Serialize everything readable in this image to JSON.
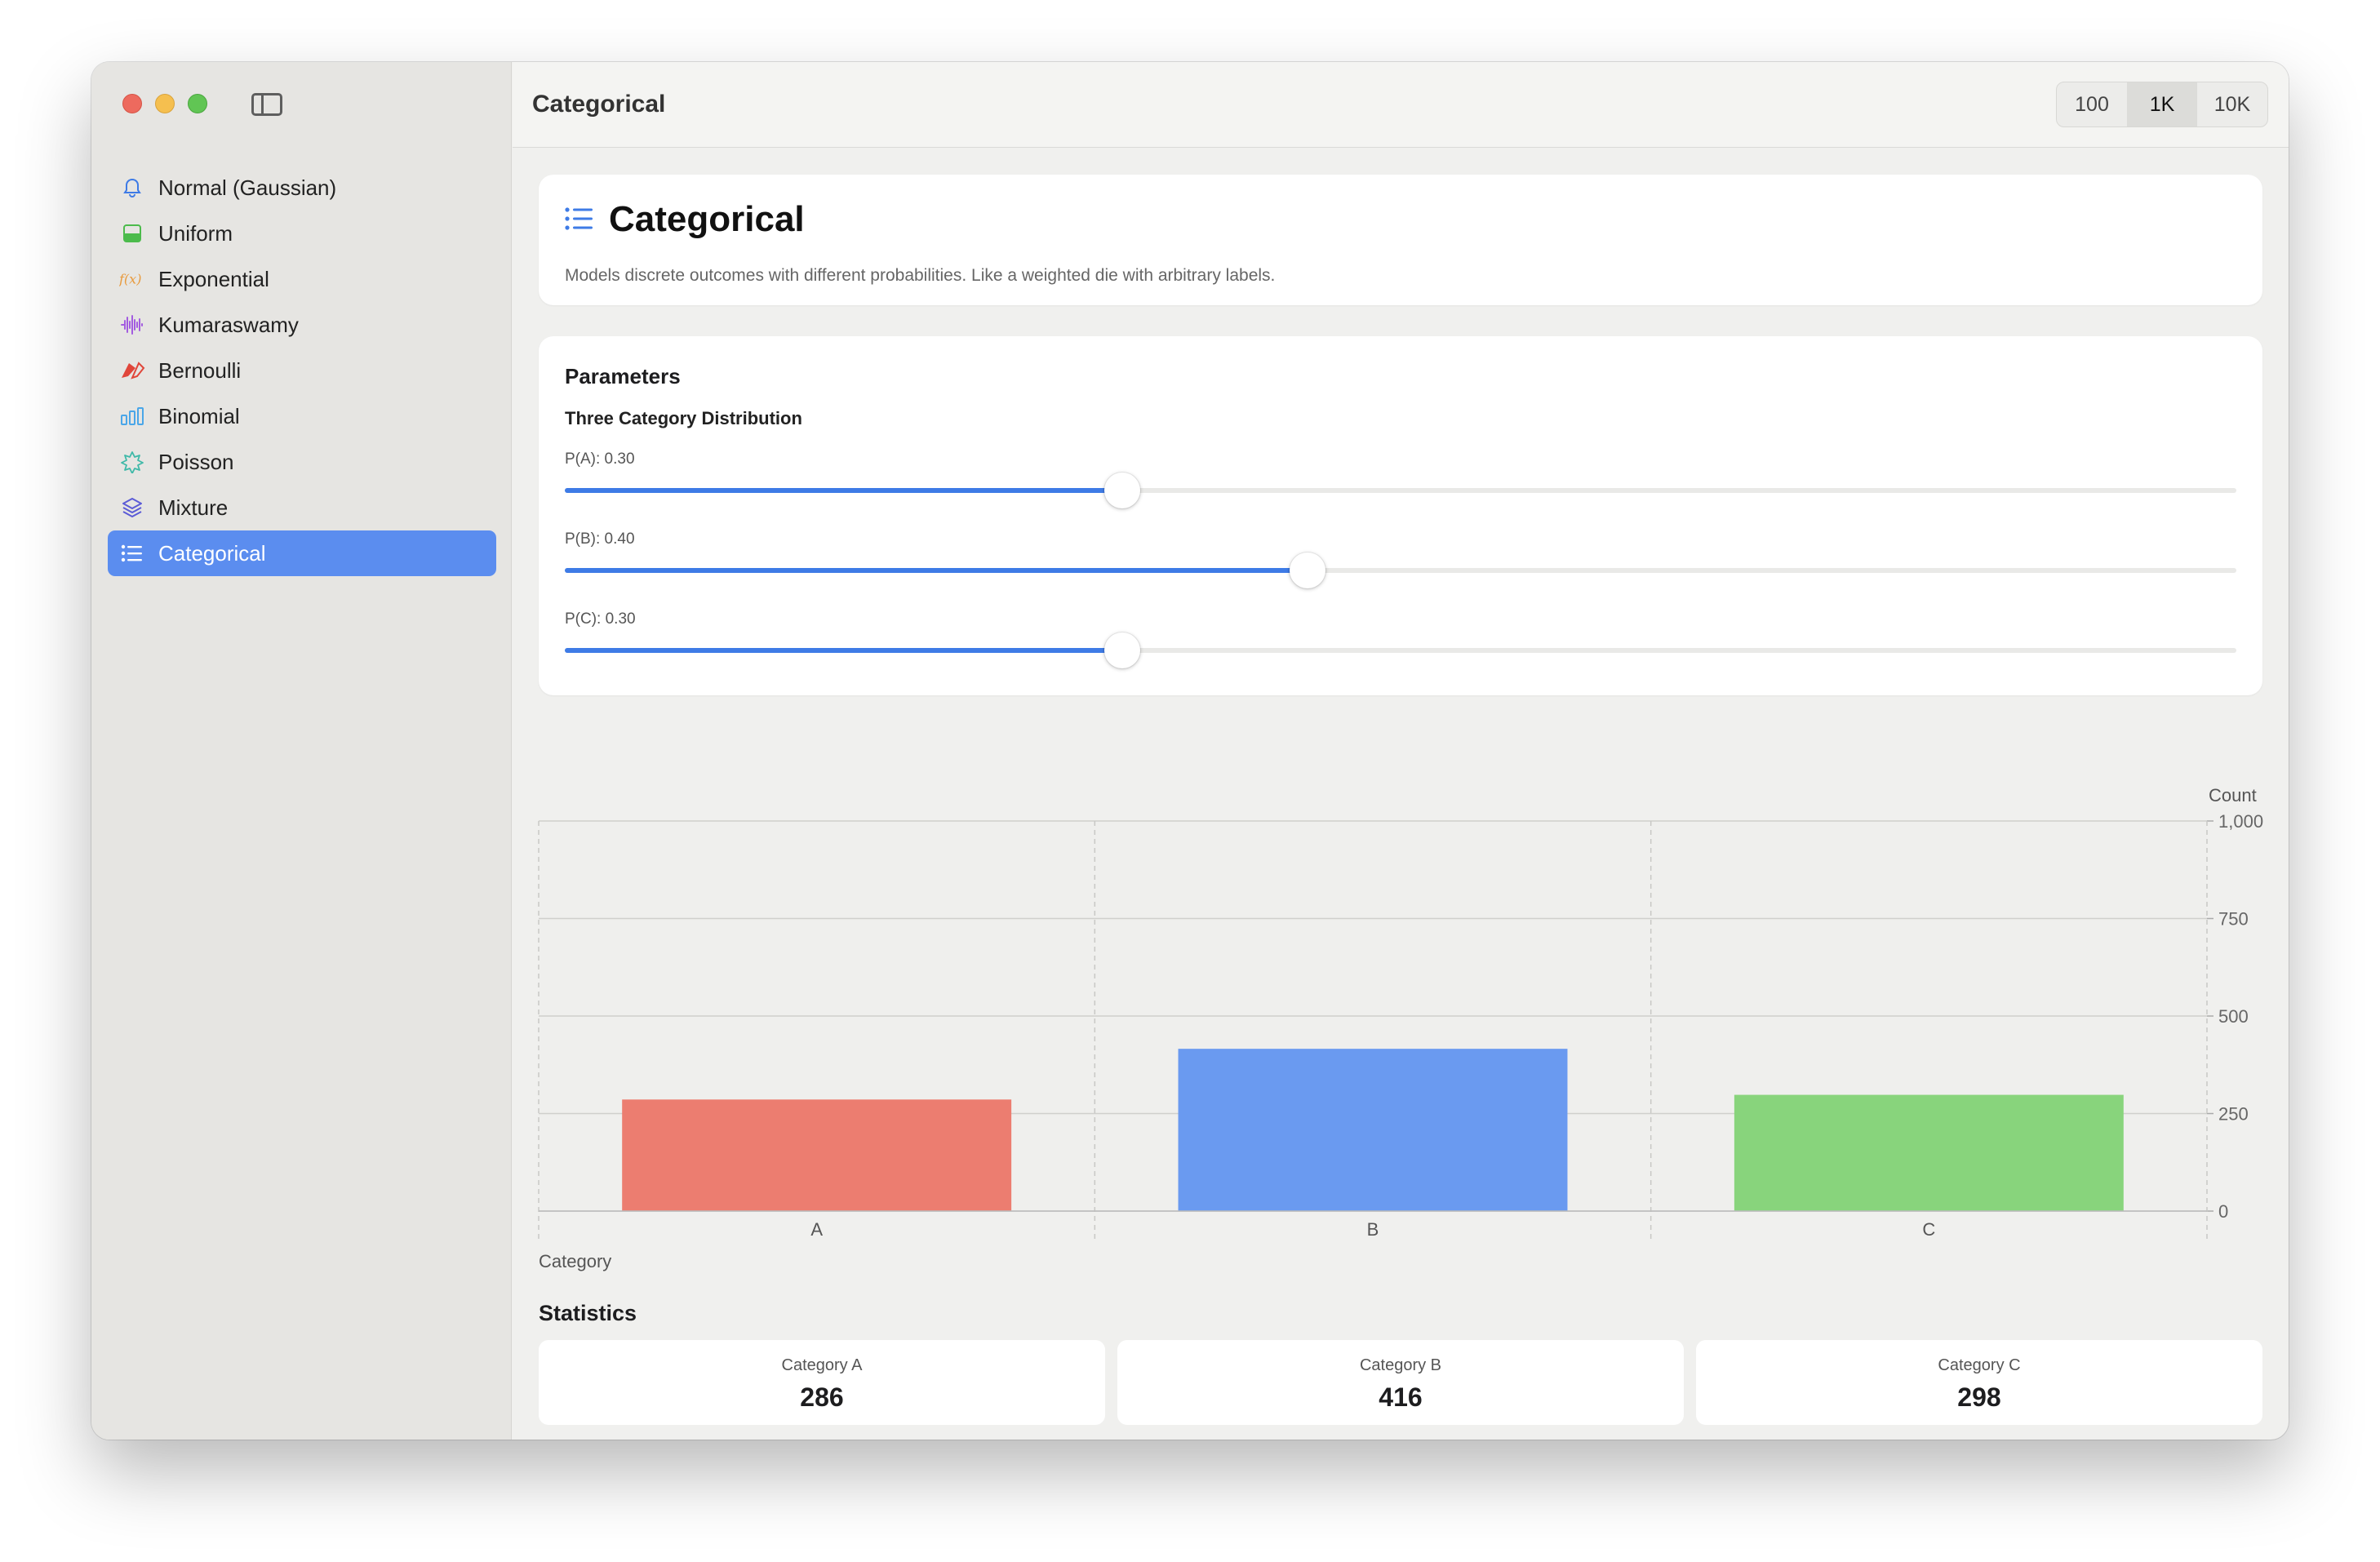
{
  "window": {
    "title": "Categorical"
  },
  "sidebar": {
    "items": [
      {
        "label": "Normal (Gaussian)",
        "icon": "bell-icon",
        "color": "#3e7be6"
      },
      {
        "label": "Uniform",
        "icon": "square-split-icon",
        "color": "#4cbb4c"
      },
      {
        "label": "Exponential",
        "icon": "function-icon",
        "color": "#e89a3c"
      },
      {
        "label": "Kumaraswamy",
        "icon": "waveform-icon",
        "color": "#a35ce0"
      },
      {
        "label": "Bernoulli",
        "icon": "flags-icon",
        "color": "#e0463a"
      },
      {
        "label": "Binomial",
        "icon": "bar-chart-icon",
        "color": "#4aa6e8"
      },
      {
        "label": "Poisson",
        "icon": "starburst-icon",
        "color": "#3fb9a8"
      },
      {
        "label": "Mixture",
        "icon": "layers-icon",
        "color": "#5b5bd6"
      },
      {
        "label": "Categorical",
        "icon": "list-icon",
        "color": "#ffffff",
        "active": true
      }
    ]
  },
  "toolbar": {
    "title": "Categorical",
    "sample_sizes": [
      "100",
      "1K",
      "10K"
    ],
    "selected_sample_size": "1K"
  },
  "header": {
    "title": "Categorical",
    "description": "Models discrete outcomes with different probabilities. Like a weighted die with arbitrary labels.",
    "icon": "list-icon"
  },
  "parameters": {
    "title": "Parameters",
    "subtitle": "Three Category Distribution",
    "sliders": [
      {
        "label": "P(A): 0.30",
        "value": 0.3,
        "top": 0
      },
      {
        "label": "P(B): 0.40",
        "value": 0.4,
        "top": 0
      },
      {
        "label": "P(C): 0.30",
        "value": 0.3,
        "top": 0
      }
    ]
  },
  "chart_data": {
    "type": "bar",
    "categories": [
      "A",
      "B",
      "C"
    ],
    "values": [
      286,
      416,
      298
    ],
    "colors": [
      "#ec7d70",
      "#6a9af0",
      "#88d47c"
    ],
    "xlabel": "Category",
    "ylabel": "Count",
    "ylim": [
      0,
      1000
    ],
    "yticks": [
      0,
      250,
      500,
      750,
      1000
    ],
    "ytick_labels": [
      "0",
      "250",
      "500",
      "750",
      "1,000"
    ],
    "grid": true,
    "y_axis_side": "right"
  },
  "statistics": {
    "title": "Statistics",
    "cards": [
      {
        "label": "Category A",
        "value": "286"
      },
      {
        "label": "Category B",
        "value": "416"
      },
      {
        "label": "Category C",
        "value": "298"
      }
    ]
  }
}
